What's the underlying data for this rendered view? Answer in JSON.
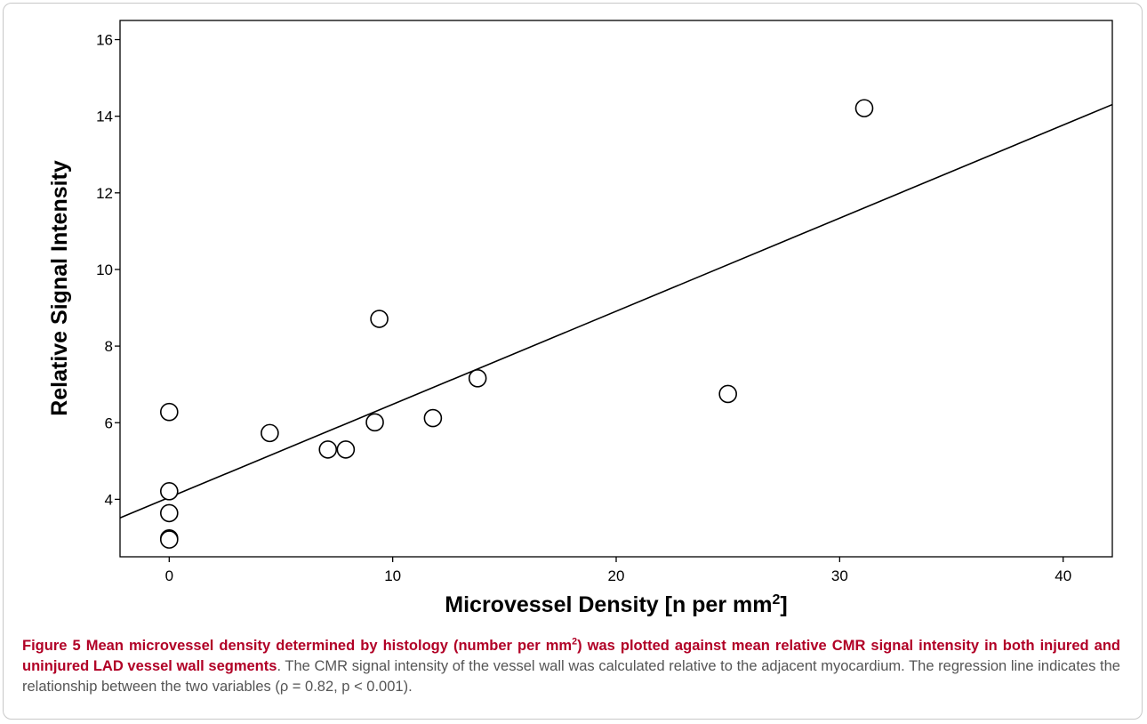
{
  "chart_data": {
    "type": "scatter",
    "xlabel": "Microvessel Density [n per mm",
    "xlabel_sup": "2",
    "xlabel_end": "]",
    "ylabel": "Relative Signal Intensity",
    "xlim": [
      -2.2,
      42.2
    ],
    "ylim": [
      2.5,
      16.5
    ],
    "x_ticks": [
      0,
      10,
      20,
      30,
      40
    ],
    "y_ticks": [
      4,
      6,
      8,
      10,
      12,
      14,
      16
    ],
    "x_tick_labels": [
      "0",
      "10",
      "20",
      "30",
      "40"
    ],
    "y_tick_labels": [
      "4",
      "6",
      "8",
      "10",
      "12",
      "14",
      "16"
    ],
    "grid": false,
    "points": [
      {
        "x": 0.0,
        "y": 6.28
      },
      {
        "x": 0.0,
        "y": 4.21
      },
      {
        "x": 0.0,
        "y": 3.64
      },
      {
        "x": 0.0,
        "y": 2.98
      },
      {
        "x": 0.0,
        "y": 2.95
      },
      {
        "x": 4.5,
        "y": 5.73
      },
      {
        "x": 7.1,
        "y": 5.3
      },
      {
        "x": 7.9,
        "y": 5.3
      },
      {
        "x": 9.2,
        "y": 6.01
      },
      {
        "x": 9.4,
        "y": 8.71
      },
      {
        "x": 11.8,
        "y": 6.12
      },
      {
        "x": 13.8,
        "y": 7.16
      },
      {
        "x": 25.0,
        "y": 6.75
      },
      {
        "x": 31.1,
        "y": 14.21
      }
    ],
    "regression": {
      "intercept": 4.05,
      "slope": 0.243
    }
  },
  "caption": {
    "bold_1": "Figure 5 Mean microvessel density determined by histology (number per mm",
    "bold_sup": "2",
    "bold_2": ") was plotted against mean relative CMR signal intensity in both injured and uninjured LAD vessel wall segments",
    "text": ". The CMR signal intensity of the vessel wall was calculated relative to the adjacent myocardium. The regression line indicates the relationship between the two variables (ρ = 0.82, p < 0.001)."
  }
}
